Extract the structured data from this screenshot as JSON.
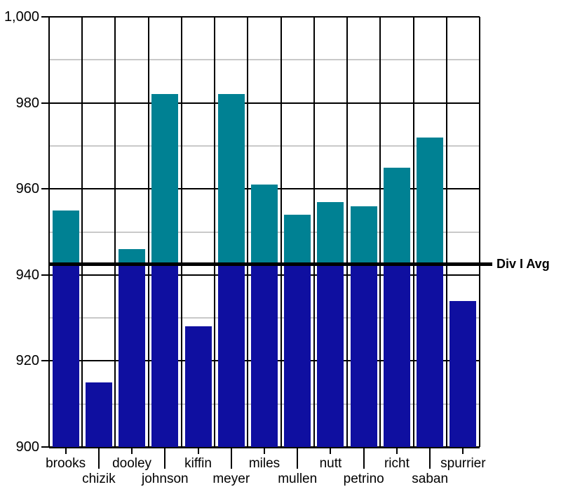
{
  "chart_data": {
    "type": "bar",
    "title": "",
    "xlabel": "",
    "ylabel": "",
    "categories": [
      "brooks",
      "chizik",
      "dooley",
      "johnson",
      "kiffin",
      "meyer",
      "miles",
      "mullen",
      "nutt",
      "petrino",
      "richt",
      "saban",
      "spurrier"
    ],
    "values": [
      955,
      915,
      946,
      982,
      928,
      982,
      961,
      954,
      957,
      956,
      965,
      972,
      934
    ],
    "ylim": [
      900,
      1000
    ],
    "y_major_ticks": [
      900,
      920,
      940,
      960,
      980,
      1000
    ],
    "y_major_tick_labels": [
      "900",
      "920",
      "940",
      "960",
      "980",
      "1,000"
    ],
    "y_minor_ticks": [
      910,
      930,
      950,
      970,
      990
    ],
    "reference_line": {
      "label": "Div I Avg",
      "value": 942.5
    },
    "bar_color_rule": "bar segment below reference line is navy; segment above reference line is teal",
    "colors": {
      "navy_segment": "#0F0FA0",
      "teal_segment": "#008193",
      "major_grid": "#000000",
      "minor_grid": "#C9C9C9",
      "reference_line": "#000000",
      "background": "#FFFFFF"
    },
    "grid": "on",
    "legend": "none"
  }
}
